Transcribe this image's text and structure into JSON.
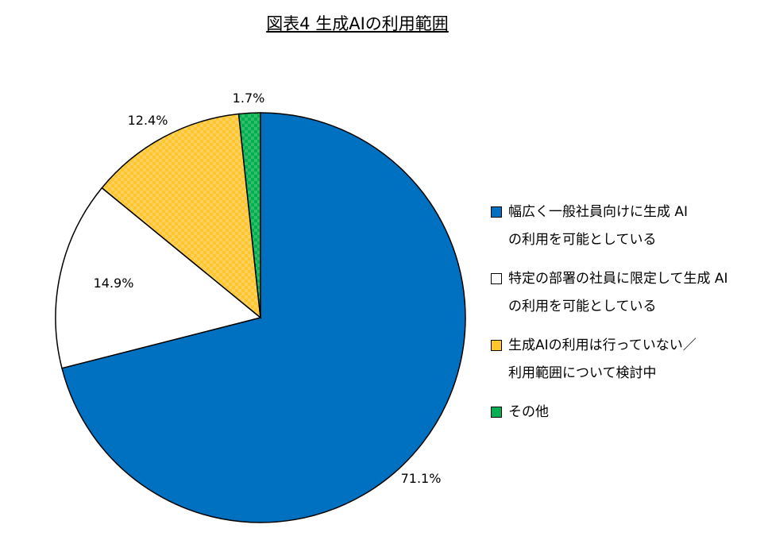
{
  "chart_data": {
    "type": "pie",
    "title": "図表4 生成AIの利用範囲",
    "start": "12 o'clock",
    "direction": "clockwise",
    "legend_position": "right",
    "slices": [
      {
        "label_lines": [
          "幅広く一般社員向けに生成 AI",
          "の利用を可能としている"
        ],
        "value": 71.1,
        "value_label": "71.1%",
        "color": "#0070C0",
        "pattern": "none"
      },
      {
        "label_lines": [
          "特定の部署の社員に限定して生成 AI",
          "の利用を可能としている"
        ],
        "value": 14.9,
        "value_label": "14.9%",
        "color": "#FFFFFF",
        "pattern": "none"
      },
      {
        "label_lines": [
          "生成AIの利用は行っていない／",
          "利用範囲について検討中"
        ],
        "value": 12.4,
        "value_label": "12.4%",
        "color": "#FFC629",
        "pattern": "checker"
      },
      {
        "label_lines": [
          "その他"
        ],
        "value": 1.7,
        "value_label": "1.7%",
        "color": "#00B050",
        "pattern": "checker"
      }
    ]
  }
}
